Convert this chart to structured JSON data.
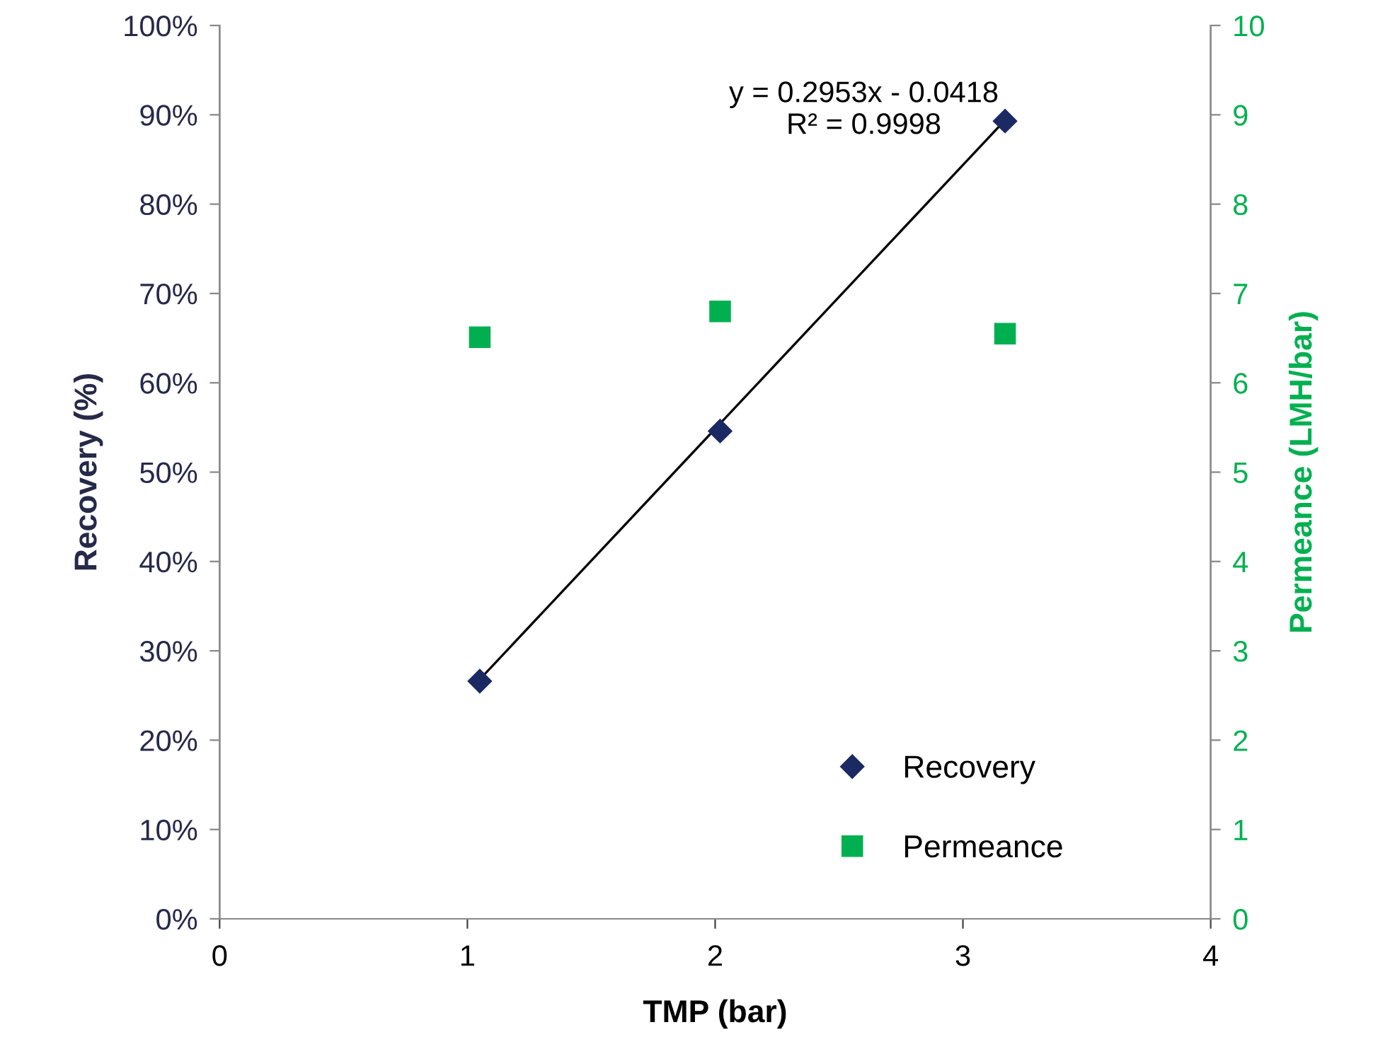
{
  "chart_data": {
    "type": "scatter",
    "xlabel": "TMP (bar)",
    "ylabel": "Recovery (%)",
    "y2label": "Permeance (LMH/bar)",
    "series": [
      {
        "name": "Recovery",
        "marker": "diamond",
        "color": "#1b2a63",
        "x": [
          1.05,
          2.02,
          3.17
        ],
        "values": [
          26.6,
          54.6,
          89.3
        ]
      },
      {
        "name": "Permeance",
        "marker": "square",
        "color": "#00b050",
        "axis": "y2",
        "x": [
          1.05,
          2.02,
          3.17
        ],
        "values": [
          6.51,
          6.8,
          6.55
        ]
      },
      {
        "type": "line",
        "color": "#000000",
        "marker": "none",
        "line_style": "solid",
        "x": [
          1.05,
          3.17
        ],
        "values": [
          26.8,
          89.4
        ]
      }
    ],
    "annotations": [
      "y = 0.2953x - 0.0418\nR² = 0.9998"
    ],
    "xlim": [
      0,
      4
    ],
    "xticks": [
      0,
      1,
      2,
      3,
      4
    ],
    "ylim": [
      0,
      100
    ],
    "yticks": [
      {
        "value": 0,
        "label": "0%"
      },
      {
        "value": 10,
        "label": "10%"
      },
      {
        "value": 20,
        "label": "20%"
      },
      {
        "value": 30,
        "label": "30%"
      },
      {
        "value": 40,
        "label": "40%"
      },
      {
        "value": 50,
        "label": "50%"
      },
      {
        "value": 60,
        "label": "60%"
      },
      {
        "value": 70,
        "label": "70%"
      },
      {
        "value": 80,
        "label": "80%"
      },
      {
        "value": 90,
        "label": "90%"
      },
      {
        "value": 100,
        "label": "100%"
      }
    ],
    "y2lim": [
      0,
      10
    ],
    "y2ticks": [
      0,
      1,
      2,
      3,
      4,
      5,
      6,
      7,
      8,
      9,
      10
    ],
    "grid": false,
    "legend": "bottom right"
  }
}
